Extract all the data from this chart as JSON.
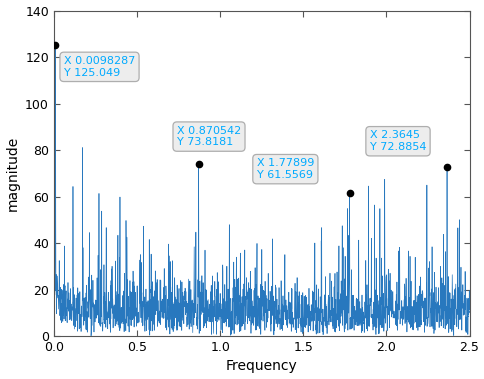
{
  "xlabel": "Frequency",
  "ylabel": "magnitude",
  "xlim": [
    0,
    2.5
  ],
  "ylim": [
    0,
    140
  ],
  "xticks": [
    0,
    0.5,
    1.0,
    1.5,
    2.0,
    2.5
  ],
  "yticks": [
    0,
    20,
    40,
    60,
    80,
    100,
    120,
    140
  ],
  "line_color": "#2878be",
  "background_color": "#ffffff",
  "peak1_freq": 0.0098287,
  "peak1_mag": 125.049,
  "peak2_freq": 0.870542,
  "peak2_mag": 73.8181,
  "peak3_freq": 1.77899,
  "peak3_mag": 61.5569,
  "peak4_freq": 2.3645,
  "peak4_mag": 72.8854,
  "text_color": "#00aaff",
  "ann1_text": "X 0.0098287\nY 125.049",
  "ann2_text": "X 0.870542\nY 73.8181",
  "ann3_text": "X 1.77899\nY 61.5569",
  "ann4_text": "X 2.3645\nY 72.8854"
}
